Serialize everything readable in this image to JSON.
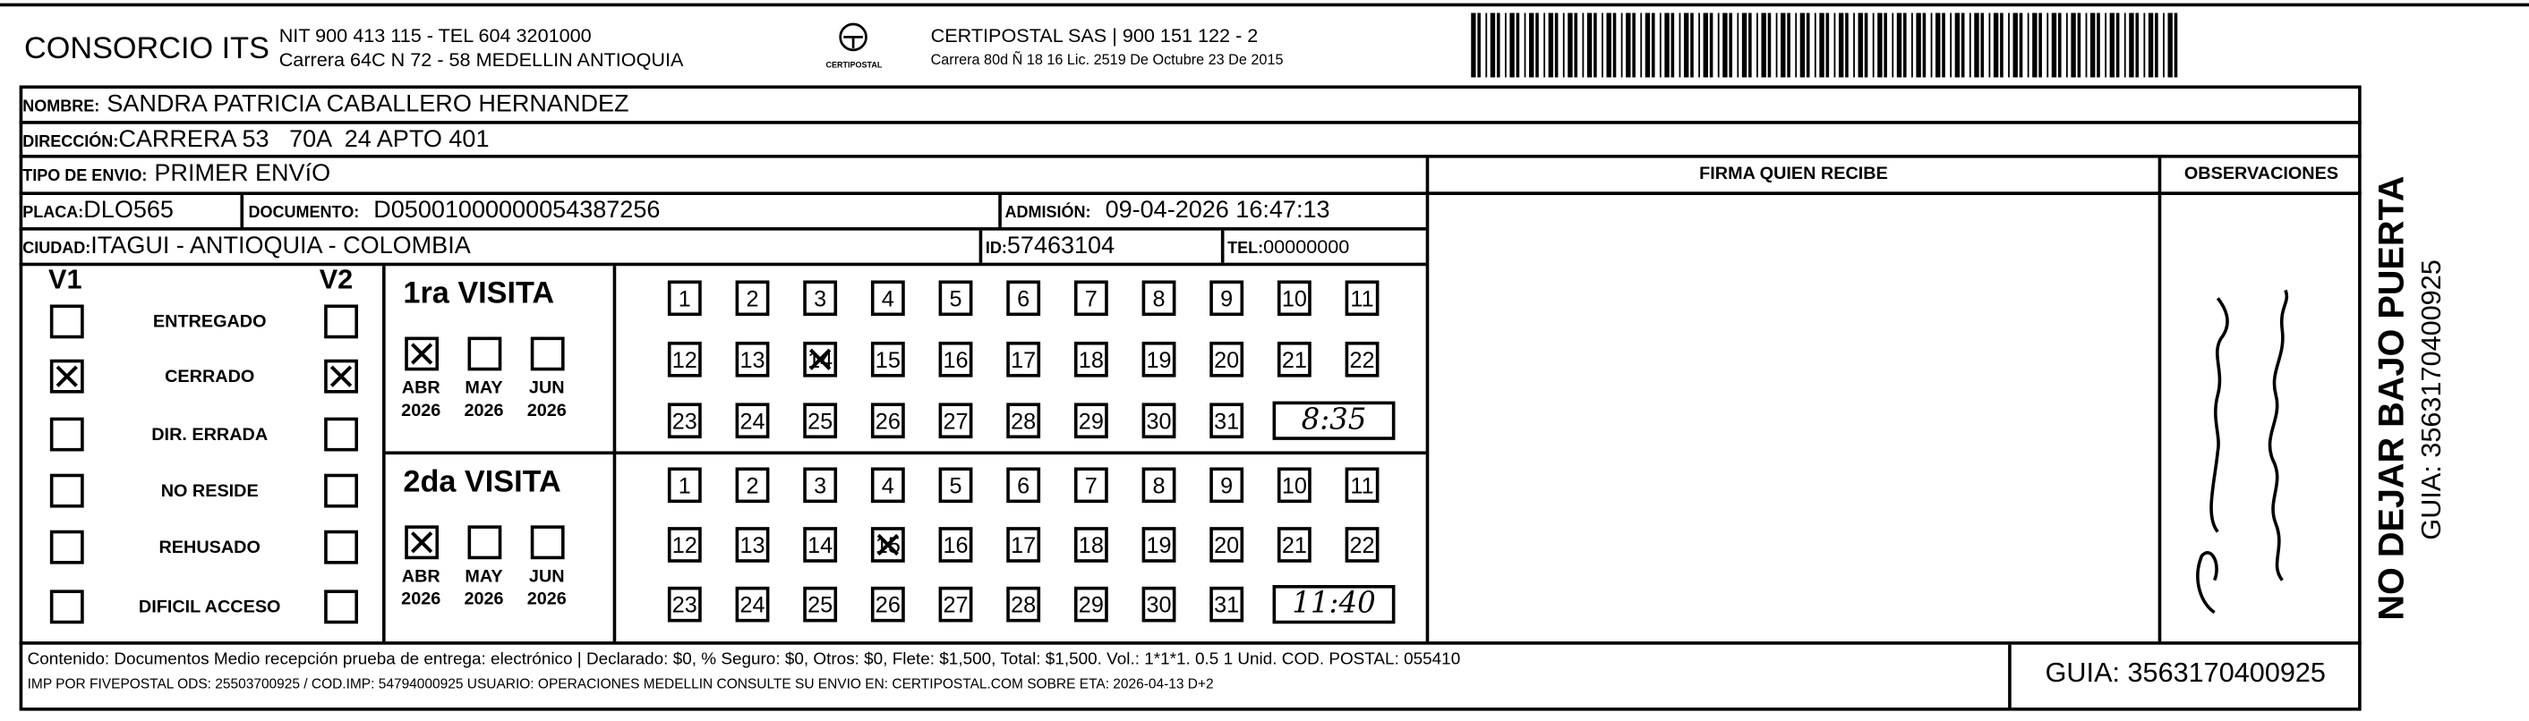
{
  "header": {
    "company": "CONSORCIO ITS",
    "nit_line": "NIT 900 413 115 - TEL 604 3201000",
    "address_line": "Carrera 64C N 72 - 58 MEDELLIN ANTIOQUIA",
    "logo_text": "CERTIPOSTAL",
    "carrier_line": "CERTIPOSTAL SAS | 900 151 122 - 2",
    "carrier_address": "Carrera 80d Ñ 18 16  Lic. 2519 De Octubre 23 De 2015"
  },
  "recipient": {
    "nombre_label": "NOMBRE:",
    "nombre": "SANDRA PATRICIA CABALLERO HERNANDEZ",
    "direccion_label": "DIRECCIÓN:",
    "direccion": "CARRERA 53   70A  24 APTO 401",
    "tipo_label": "TIPO DE ENVIO:",
    "tipo": "PRIMER ENVíO",
    "placa_label": "PLACA:",
    "placa": "DLO565",
    "documento_label": "DOCUMENTO:",
    "documento": "D05001000000054387256",
    "admision_label": "ADMISIÓN:",
    "admision": "09-04-2026 16:47:13",
    "ciudad_label": "CIUDAD:",
    "ciudad": "ITAGUI - ANTIOQUIA - COLOMBIA",
    "id_label": "ID:",
    "id": "57463104",
    "tel_label": "TEL:",
    "tel": "00000000"
  },
  "firma_label": "FIRMA QUIEN RECIBE",
  "observaciones_label": "OBSERVACIONES",
  "status": {
    "v1_label": "V1",
    "v2_label": "V2",
    "items": [
      {
        "label": "ENTREGADO",
        "v1": false,
        "v2": false
      },
      {
        "label": "CERRADO",
        "v1": true,
        "v2": true
      },
      {
        "label": "DIR. ERRADA",
        "v1": false,
        "v2": false
      },
      {
        "label": "NO RESIDE",
        "v1": false,
        "v2": false
      },
      {
        "label": "REHUSADO",
        "v1": false,
        "v2": false
      },
      {
        "label": "DIFICIL ACCESO",
        "v1": false,
        "v2": false
      }
    ]
  },
  "visits": [
    {
      "title": "1ra VISITA",
      "months": [
        {
          "m": "ABR",
          "y": "2026",
          "checked": true
        },
        {
          "m": "MAY",
          "y": "2026",
          "checked": false
        },
        {
          "m": "JUN",
          "y": "2026",
          "checked": false
        }
      ],
      "marked_day": 14,
      "time": "8:35"
    },
    {
      "title": "2da VISITA",
      "months": [
        {
          "m": "ABR",
          "y": "2026",
          "checked": true
        },
        {
          "m": "MAY",
          "y": "2026",
          "checked": false
        },
        {
          "m": "JUN",
          "y": "2026",
          "checked": false
        }
      ],
      "marked_day": 15,
      "time": "11:40"
    }
  ],
  "footer": {
    "contenido": "Contenido: Documentos Medio recepción prueba de entrega: electrónico | Declarado: $0, % Seguro: $0, Otros: $0, Flete: $1,500, Total: $1,500. Vol.: 1*1*1. 0.5  1 Unid. COD. POSTAL: 055410",
    "imp": "IMP POR FIVEPOSTAL ODS: 25503700925 / COD.IMP: 54794000925 USUARIO: OPERACIONES MEDELLIN CONSULTE SU ENVIO EN: CERTIPOSTAL.COM SOBRE ETA: 2026-04-13 D+2",
    "guia": "GUIA: 3563170400925"
  },
  "side": {
    "warning": "NO DEJAR BAJO PUERTA",
    "guia": "GUIA: 3563170400925"
  }
}
